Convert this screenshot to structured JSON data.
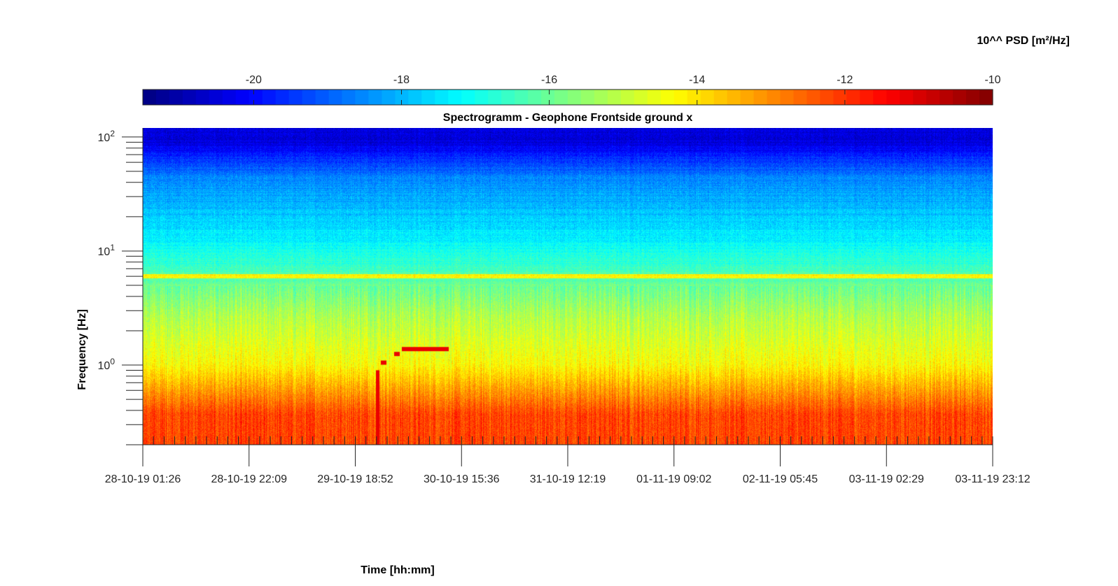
{
  "chart_data": {
    "type": "heatmap",
    "title": "Spectrogramm - Geophone Frontside ground x",
    "xlabel": "Time [hh:mm]",
    "ylabel": "Frequency [Hz]",
    "y_scale": "log",
    "ylim": [
      0.2,
      120
    ],
    "y_ticks": [
      {
        "value": 1,
        "base": "10",
        "exp": "0"
      },
      {
        "value": 10,
        "base": "10",
        "exp": "1"
      },
      {
        "value": 100,
        "base": "10",
        "exp": "2"
      }
    ],
    "x_tick_labels": [
      "28-10-19 01:26",
      "28-10-19 22:09",
      "29-10-19 18:52",
      "30-10-19 15:36",
      "31-10-19 12:19",
      "01-11-19 09:02",
      "02-11-19 05:45",
      "03-11-19 02:29",
      "03-11-19 23:12"
    ],
    "colorbar": {
      "label": "10^^ PSD [m²/Hz]",
      "range": [
        -21.5,
        -10
      ],
      "ticks": [
        -20,
        -18,
        -16,
        -14,
        -12,
        -10
      ],
      "tick_labels": [
        "-20",
        "-18",
        "-16",
        "-14",
        "-12",
        "-10"
      ],
      "colormap": "jet"
    },
    "bands": [
      {
        "freq_from": 0.2,
        "freq_to": 0.7,
        "log_psd": -12.2
      },
      {
        "freq_from": 0.7,
        "freq_to": 1.5,
        "log_psd": -14.3
      },
      {
        "freq_from": 1.5,
        "freq_to": 5.0,
        "log_psd": -15.2
      },
      {
        "freq_from": 5.8,
        "freq_to": 6.3,
        "log_psd": -14.2
      },
      {
        "freq_from": 6.5,
        "freq_to": 30,
        "log_psd": -17.4
      },
      {
        "freq_from": 30,
        "freq_to": 70,
        "log_psd": -18.6
      },
      {
        "freq_from": 70,
        "freq_to": 120,
        "log_psd": -20.5
      }
    ],
    "events": [
      {
        "time": "29-10-19 23:00",
        "freq_from": 0.2,
        "freq_to": 0.9,
        "log_psd": -11.0
      },
      {
        "time_from": "30-10-19 02:00",
        "time_to": "30-10-19 13:00",
        "freq": 1.38,
        "log_psd": -11.0
      }
    ]
  }
}
